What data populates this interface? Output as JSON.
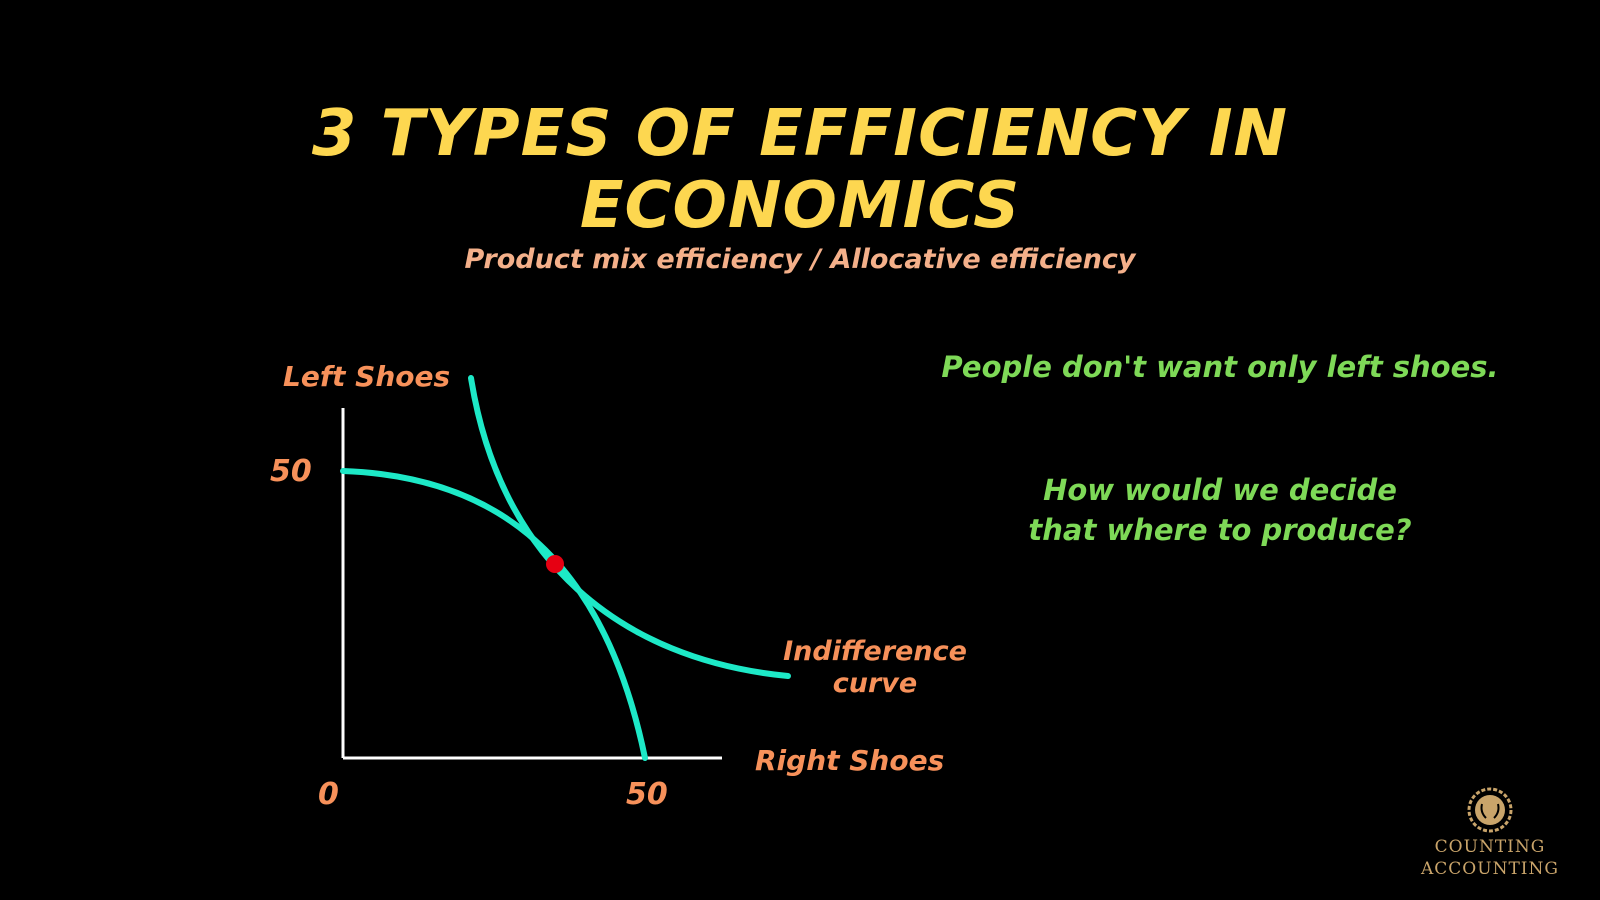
{
  "header": {
    "title_line1": "3 TYPES OF EFFICIENCY IN",
    "title_line2": "ECONOMICS",
    "subtitle": "Product mix efficiency / Allocative efficiency"
  },
  "diagram": {
    "y_axis_label": "Left Shoes",
    "x_axis_label": "Right Shoes",
    "origin_label": "0",
    "y_tick_label": "50",
    "x_tick_label": "50",
    "curve_label_line1": "Indifference",
    "curve_label_line2": "curve",
    "colors": {
      "curve": "#1de9c7",
      "axis": "#ffffff",
      "point": "#e60012",
      "label": "#f7915a"
    }
  },
  "notes": {
    "line1": "People don't want only left shoes.",
    "line2": "How would we decide",
    "line3": "that where to produce?"
  },
  "logo": {
    "line1": "COUNTING",
    "line2": "ACCOUNTING",
    "color": "#c9a46a"
  }
}
